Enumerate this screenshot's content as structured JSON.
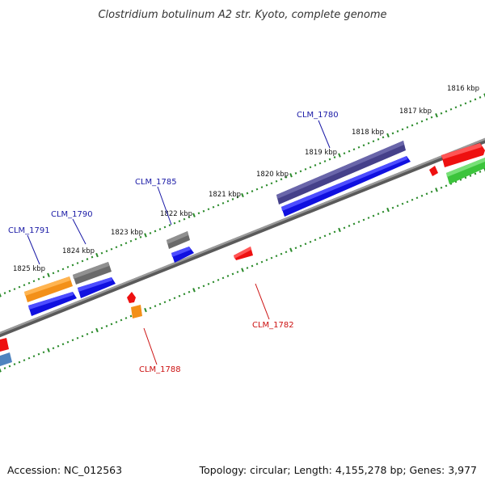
{
  "title": "Clostridium botulinum A2 str. Kyoto, complete genome",
  "accession": "Accession: NC_012563",
  "summary": "Topology: circular; Length: 4,155,278 bp; Genes: 3,977",
  "ticks": [
    {
      "label": "1816 kbp"
    },
    {
      "label": "1817 kbp"
    },
    {
      "label": "1818 kbp"
    },
    {
      "label": "1819 kbp"
    },
    {
      "label": "1820 kbp"
    },
    {
      "label": "1821 kbp"
    },
    {
      "label": "1822 kbp"
    },
    {
      "label": "1823 kbp"
    },
    {
      "label": "1824 kbp"
    },
    {
      "label": "1825 kbp"
    }
  ],
  "gene_labels": [
    {
      "label": "CLM_1780",
      "strand": "forward",
      "color": "#1a1aa6"
    },
    {
      "label": "CLM_1785",
      "strand": "forward",
      "color": "#1a1aa6"
    },
    {
      "label": "CLM_1790",
      "strand": "forward",
      "color": "#1a1aa6"
    },
    {
      "label": "CLM_1791",
      "strand": "forward",
      "color": "#1a1aa6"
    },
    {
      "label": "CLM_1782",
      "strand": "reverse",
      "color": "#cc1111"
    },
    {
      "label": "CLM_1788",
      "strand": "reverse",
      "color": "#cc1111"
    }
  ],
  "colors": {
    "backbone": "#7a7a7a",
    "tick_dots": "#2a8a2a",
    "cds_blue": "#1010e0",
    "gene_navy": "#45408a",
    "gene_grey": "#6a6a6a",
    "gene_orange": "#f39018",
    "gene_red": "#ee1010",
    "gene_green": "#3cc43c",
    "gene_steelblue": "#4f84bf"
  }
}
